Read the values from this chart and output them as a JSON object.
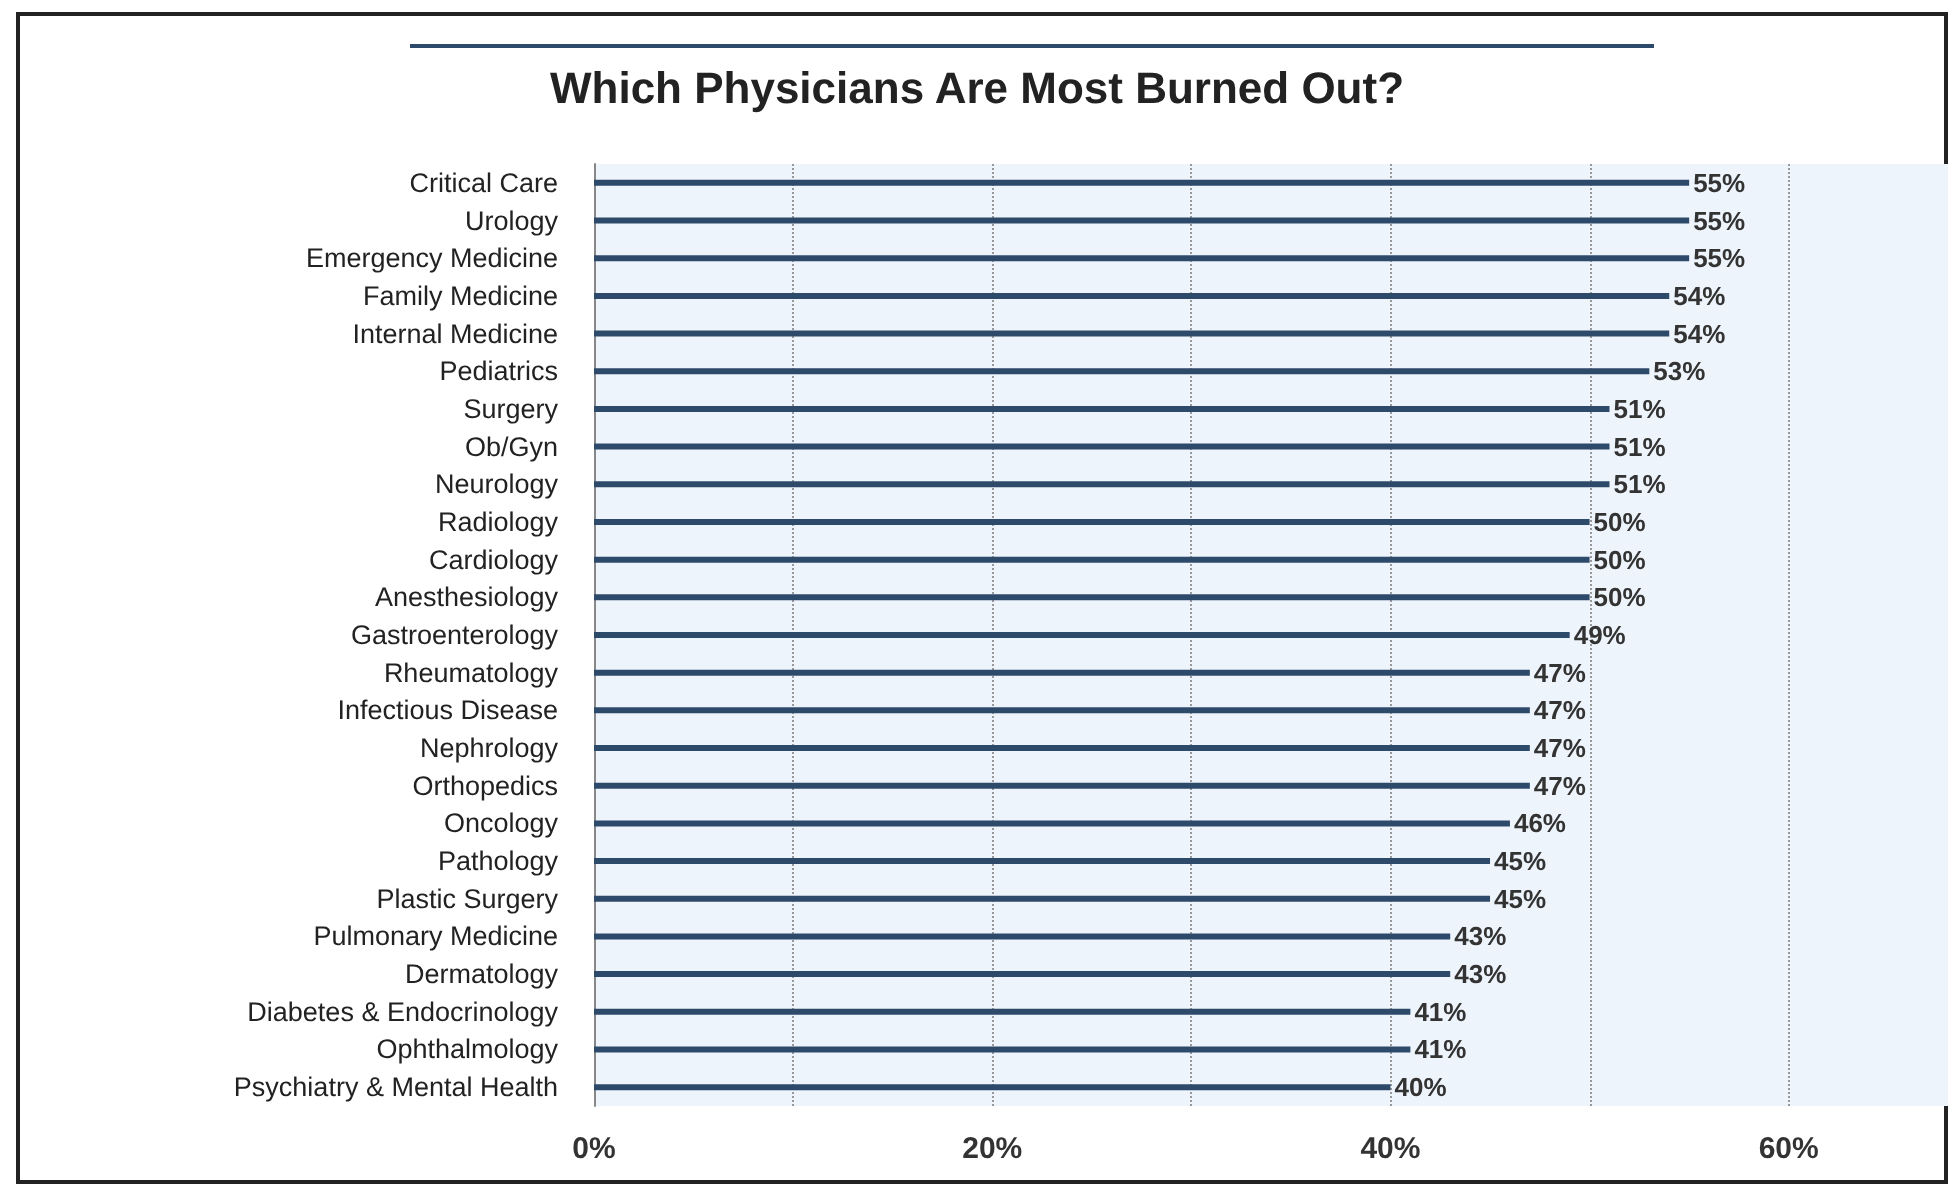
{
  "chart_data": {
    "type": "bar",
    "orientation": "horizontal",
    "title": "Which Physicians Are Most Burned Out?",
    "categories": [
      "Critical Care",
      "Urology",
      "Emergency Medicine",
      "Family Medicine",
      "Internal Medicine",
      "Pediatrics",
      "Surgery",
      "Ob/Gyn",
      "Neurology",
      "Radiology",
      "Cardiology",
      "Anesthesiology",
      "Gastroenterology",
      "Rheumatology",
      "Infectious Disease",
      "Nephrology",
      "Orthopedics",
      "Oncology",
      "Pathology",
      "Plastic Surgery",
      "Pulmonary Medicine",
      "Dermatology",
      "Diabetes & Endocrinology",
      "Ophthalmology",
      "Psychiatry & Mental Health"
    ],
    "values": [
      55,
      55,
      55,
      54,
      54,
      53,
      51,
      51,
      51,
      50,
      50,
      50,
      49,
      47,
      47,
      47,
      47,
      46,
      45,
      45,
      43,
      43,
      41,
      41,
      40
    ],
    "value_labels": [
      "55%",
      "55%",
      "55%",
      "54%",
      "54%",
      "53%",
      "51%",
      "51%",
      "51%",
      "50%",
      "50%",
      "50%",
      "49%",
      "47%",
      "47%",
      "47%",
      "47%",
      "46%",
      "45%",
      "45%",
      "43%",
      "43%",
      "41%",
      "41%",
      "40%"
    ],
    "color": "#2e4a6b",
    "xlim": [
      0,
      68
    ],
    "xticks": [
      {
        "value": 0,
        "label": "0%"
      },
      {
        "value": 10,
        "label": null
      },
      {
        "value": 20,
        "label": "20%"
      },
      {
        "value": 30,
        "label": null
      },
      {
        "value": 40,
        "label": "40%"
      },
      {
        "value": 50,
        "label": null
      },
      {
        "value": 60,
        "label": "60%"
      }
    ],
    "grid": "x"
  }
}
